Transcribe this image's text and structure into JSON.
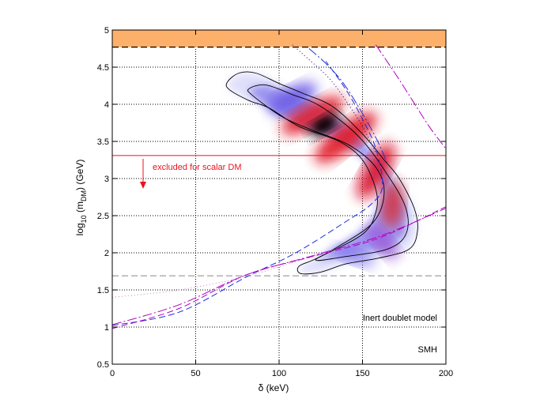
{
  "chart_data": {
    "type": "heatmap",
    "xlabel": "δ (keV)",
    "ylabel_main": "log",
    "ylabel_sub1": "10",
    "ylabel_mid": " (m",
    "ylabel_sub2": "DM",
    "ylabel_end": ") (GeV)",
    "xlim": [
      0,
      200
    ],
    "ylim": [
      0.5,
      5
    ],
    "xticks": [
      "0",
      "50",
      "100",
      "150",
      "200"
    ],
    "yticks": [
      "0.5",
      "1",
      "1.5",
      "2",
      "2.5",
      "3",
      "3.5",
      "4",
      "4.5",
      "5"
    ],
    "grid": true,
    "excluded_band": {
      "y_from": 4.77,
      "y_to": 5.0,
      "color": "#fdb06a"
    },
    "excluded_band_edge_y": 4.77,
    "scalar_dm_line": {
      "y": 3.31,
      "label": "excluded for scalar DM",
      "color": "#e8141e"
    },
    "lower_dashed_line": {
      "y": 1.69,
      "color": "#888888"
    },
    "annotations": [
      "Inert doublet model",
      "SMH"
    ],
    "posterior_ridge": [
      [
        128,
        3.7
      ],
      [
        115,
        3.9
      ],
      [
        100,
        4.2
      ],
      [
        110,
        4.15
      ],
      [
        140,
        3.55
      ],
      [
        160,
        3.1
      ],
      [
        170,
        2.6
      ],
      [
        165,
        2.2
      ],
      [
        150,
        1.95
      ],
      [
        135,
        1.8
      ]
    ],
    "contour_outer": [
      [
        69,
        4.3
      ],
      [
        76,
        4.42
      ],
      [
        86,
        4.42
      ],
      [
        100,
        4.28
      ],
      [
        114,
        4.15
      ],
      [
        132,
        3.97
      ],
      [
        150,
        3.6
      ],
      [
        163,
        3.25
      ],
      [
        172,
        3.0
      ],
      [
        181,
        2.6
      ],
      [
        183,
        2.3
      ],
      [
        178,
        2.05
      ],
      [
        160,
        1.93
      ],
      [
        140,
        1.85
      ],
      [
        125,
        1.74
      ],
      [
        113,
        1.72
      ],
      [
        112,
        1.82
      ],
      [
        123,
        1.93
      ],
      [
        150,
        2.25
      ],
      [
        158,
        2.55
      ],
      [
        158,
        2.85
      ],
      [
        150,
        3.25
      ],
      [
        136,
        3.5
      ],
      [
        112,
        3.7
      ],
      [
        94,
        3.95
      ],
      [
        82,
        4.05
      ],
      [
        70,
        4.2
      ]
    ],
    "contour_inner": [
      [
        82,
        4.21
      ],
      [
        92,
        4.26
      ],
      [
        108,
        4.13
      ],
      [
        125,
        3.97
      ],
      [
        148,
        3.56
      ],
      [
        165,
        3.05
      ],
      [
        176,
        2.6
      ],
      [
        176,
        2.25
      ],
      [
        165,
        2.05
      ],
      [
        140,
        1.95
      ],
      [
        122,
        1.9
      ],
      [
        133,
        2.05
      ],
      [
        156,
        2.4
      ],
      [
        163,
        2.8
      ],
      [
        158,
        3.15
      ],
      [
        142,
        3.45
      ],
      [
        120,
        3.65
      ],
      [
        102,
        3.83
      ],
      [
        84,
        4.12
      ]
    ],
    "series": [
      {
        "color": "#1f2fd8",
        "dash": "8,4",
        "x": [
          0,
          40,
          80,
          110,
          140,
          155,
          162,
          158,
          150,
          140,
          128
        ],
        "y": [
          1.02,
          1.2,
          1.67,
          2.0,
          2.42,
          2.65,
          2.9,
          3.4,
          3.8,
          4.2,
          4.58
        ]
      },
      {
        "color": "#1f2fd8",
        "dash": "12,3,2,3",
        "x": [
          118,
          128,
          138,
          148,
          158,
          165
        ],
        "y": [
          4.75,
          4.55,
          4.3,
          3.95,
          3.55,
          3.2
        ]
      },
      {
        "color": "#b000c0",
        "dash": "8,4",
        "x": [
          0,
          40,
          80,
          120,
          160,
          200
        ],
        "y": [
          0.98,
          1.25,
          1.7,
          1.95,
          2.2,
          2.62
        ]
      },
      {
        "color": "#b000c0",
        "dash": "12,3,2,3",
        "x": [
          0,
          40,
          80,
          120,
          160,
          200
        ],
        "y": [
          1.03,
          1.3,
          1.7,
          1.96,
          2.22,
          2.6
        ]
      },
      {
        "color": "#b000c0",
        "dash": "12,3,2,3",
        "x": [
          158,
          170,
          180,
          190,
          200
        ],
        "y": [
          4.8,
          4.4,
          4.05,
          3.7,
          3.4
        ]
      },
      {
        "color": "#c080c0",
        "dash": "1,3",
        "x": [
          0,
          40,
          80,
          120,
          160
        ],
        "y": [
          1.4,
          1.5,
          1.68,
          1.95,
          2.2
        ]
      },
      {
        "color": "#000080",
        "dash": "1,3",
        "x": [
          108,
          118,
          130,
          140,
          150,
          158
        ],
        "y": [
          4.8,
          4.6,
          4.35,
          4.05,
          3.7,
          3.35
        ]
      }
    ]
  }
}
